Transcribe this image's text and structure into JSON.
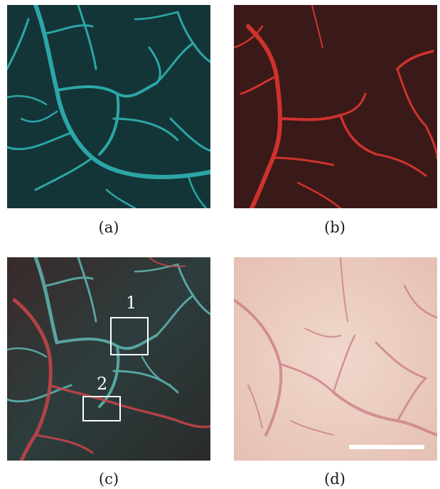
{
  "figure": {
    "panels": [
      {
        "id": "a",
        "caption": "(a)",
        "channel": "cyan",
        "base_color": "#173a3c",
        "vessel_color": "#2fb3b2"
      },
      {
        "id": "b",
        "caption": "(b)",
        "channel": "red",
        "base_color": "#3a1a18",
        "vessel_color": "#e03530"
      },
      {
        "id": "c",
        "caption": "(c)",
        "channel": "overlay",
        "base_color": "#2b3a3a",
        "boxes": [
          {
            "label": "1"
          },
          {
            "label": "2"
          }
        ]
      },
      {
        "id": "d",
        "caption": "(d)",
        "channel": "brightfield",
        "base_color": "#eccfc4",
        "vessel_color": "#c97a82",
        "scale_bar": true
      }
    ]
  }
}
